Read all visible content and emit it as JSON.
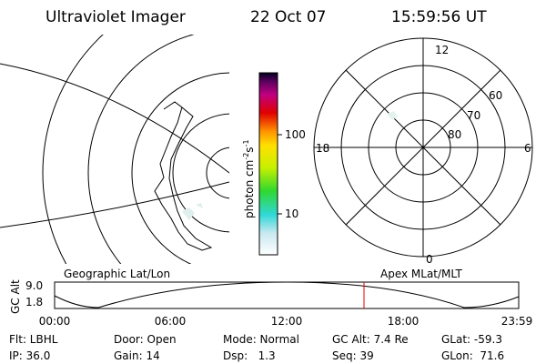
{
  "header": {
    "title": "Ultraviolet Imager",
    "date": "22 Oct 07",
    "time": "15:59:56 UT"
  },
  "colorbar": {
    "label_main": "photon cm",
    "label_exp1": "-2",
    "label_mid": "s",
    "label_exp2": "-1",
    "ticks": [
      "100",
      "10"
    ]
  },
  "polar_plot": {
    "mlt_labels": [
      "12",
      "18",
      "6",
      "0"
    ],
    "lat_labels": [
      "60",
      "70",
      "80"
    ]
  },
  "captions": {
    "left": "Geographic Lat/Lon",
    "right": "Apex MLat/MLT"
  },
  "altitude_plot": {
    "ylabel": "GC Alt",
    "yticks": [
      "9.0",
      "1.8"
    ],
    "xticks": [
      "00:00",
      "06:00",
      "12:00",
      "18:00",
      "23:59"
    ]
  },
  "footer": {
    "rows": [
      [
        "Flt: LBHL",
        "Door: Open",
        "Mode: Normal",
        "GC Alt: 7.4 Re",
        "GLat: -59.3"
      ],
      [
        "IP: 36.0",
        "Gain: 14",
        "Dsp:   1.3",
        "Seq: 39",
        "GLon:  71.6"
      ]
    ]
  }
}
